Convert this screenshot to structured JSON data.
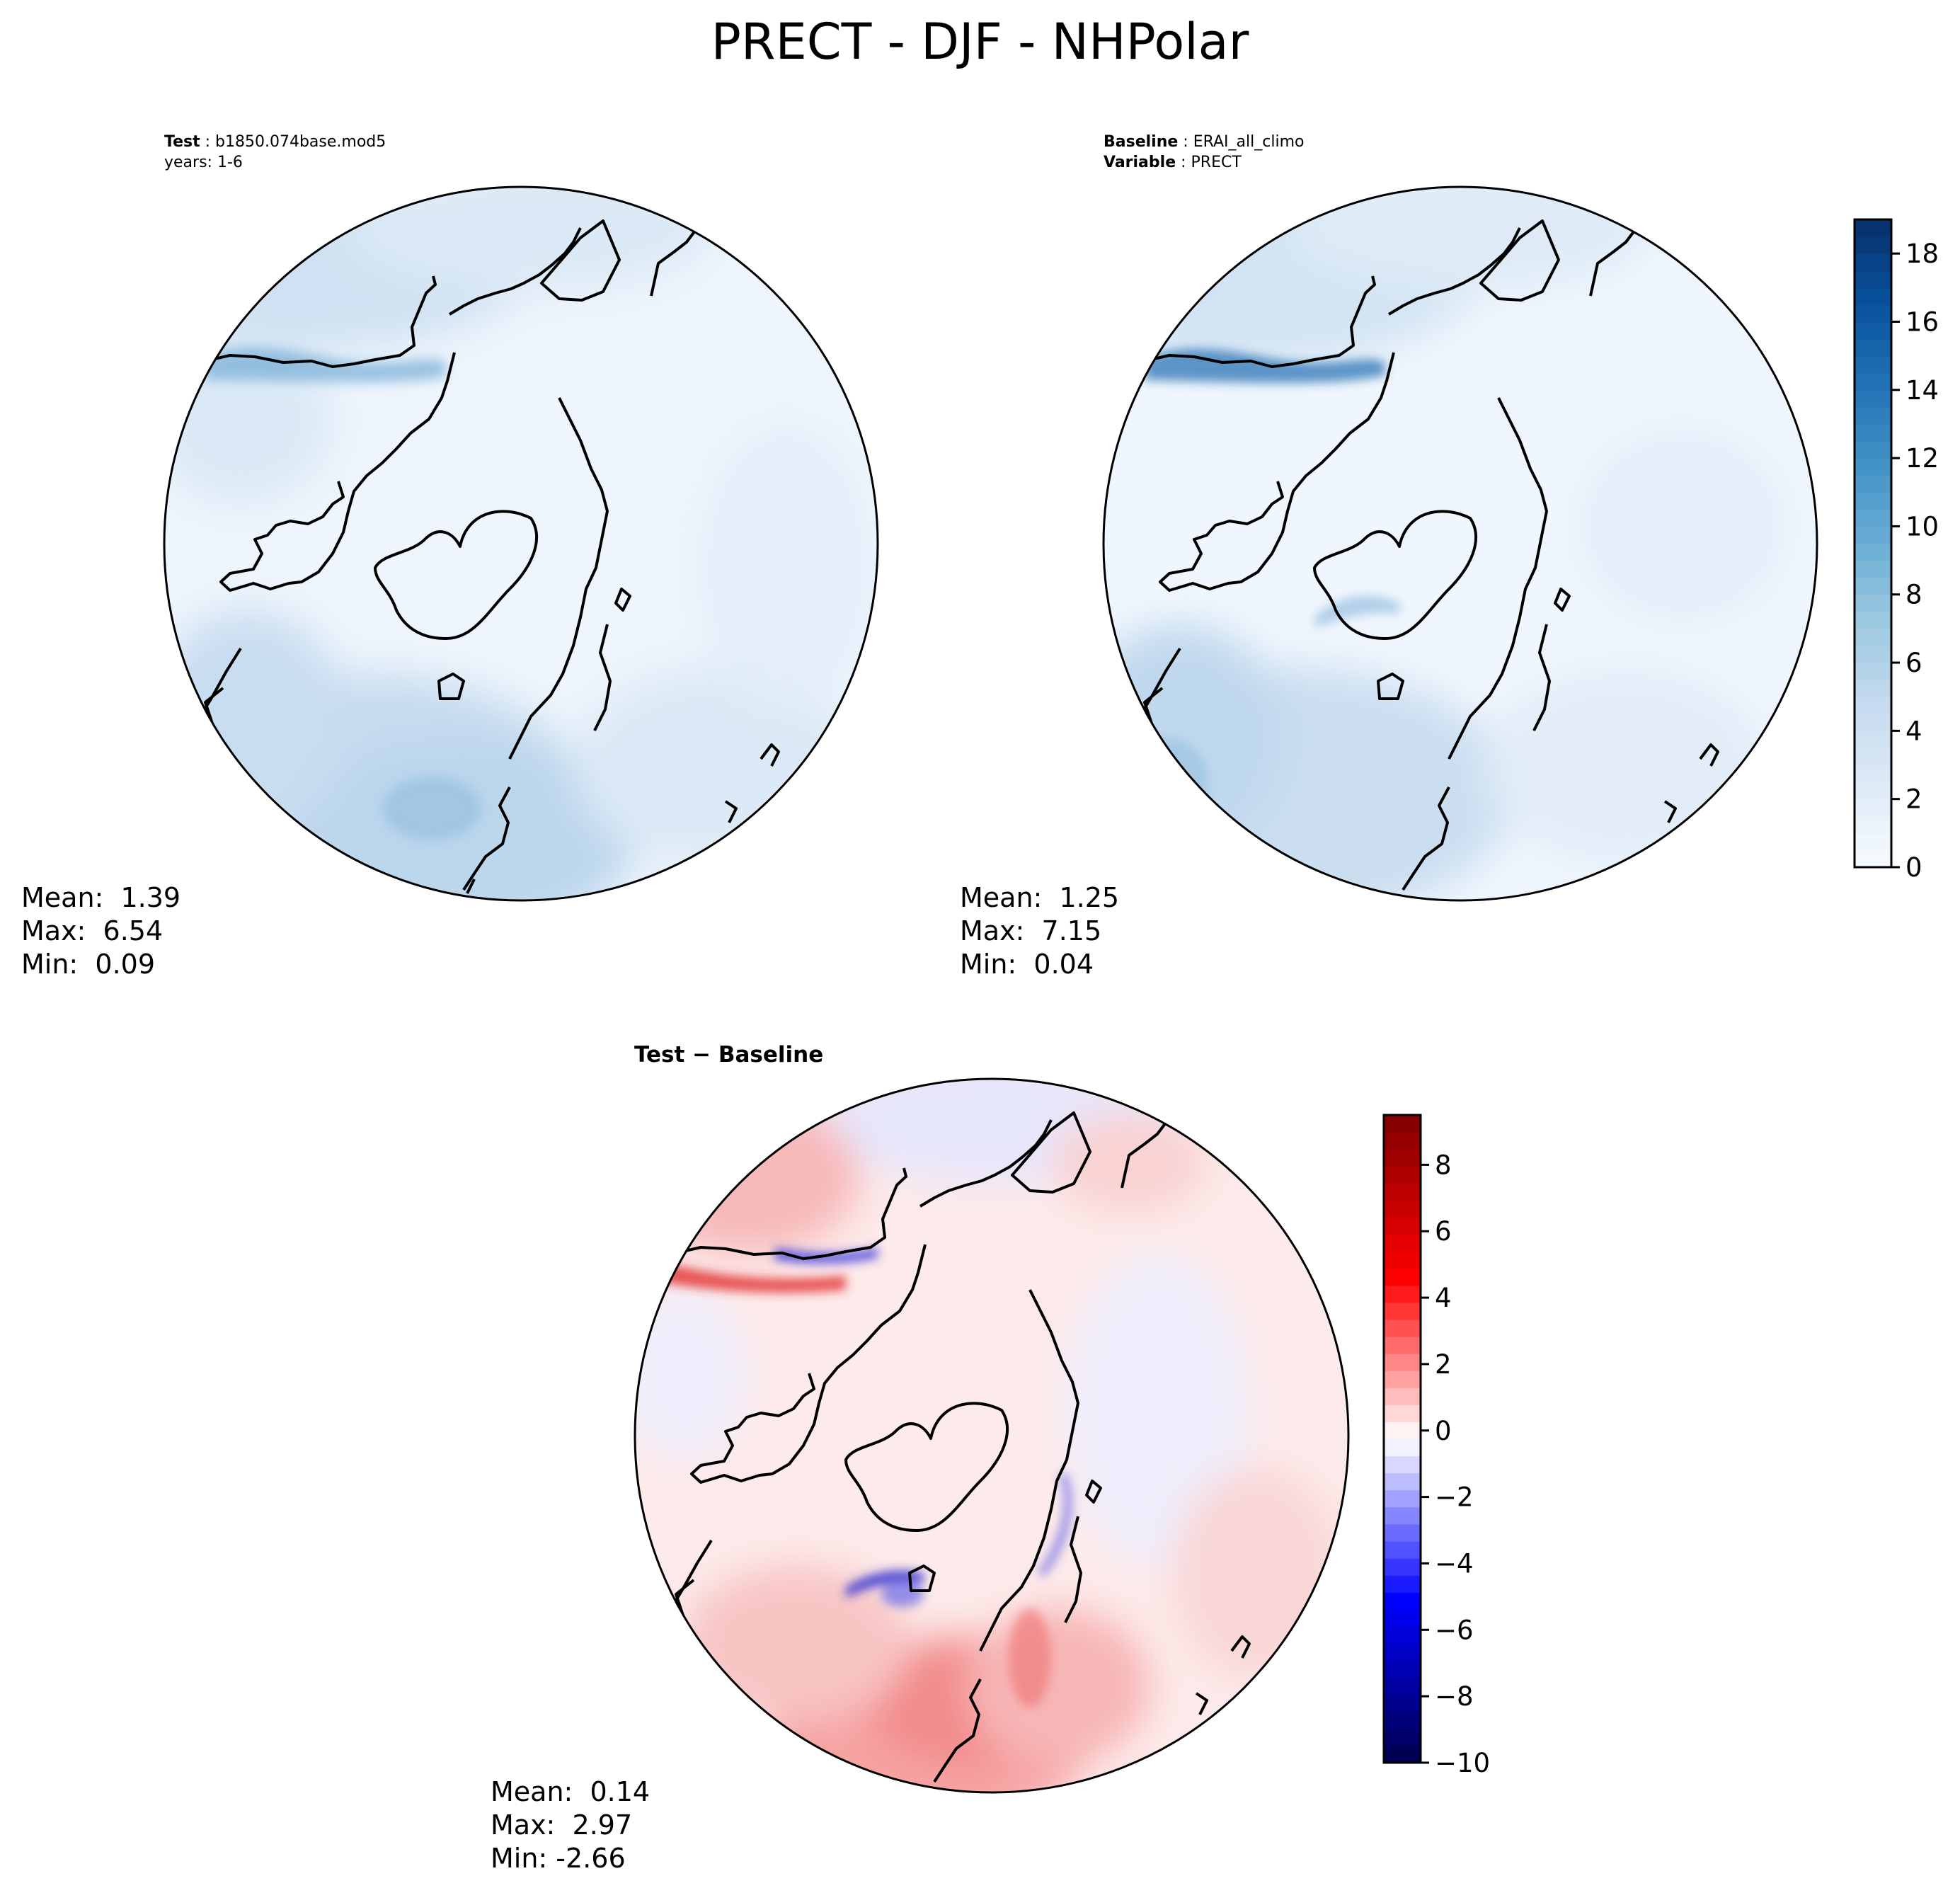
{
  "figure": {
    "title": "PRECT - DJF - NHPolar"
  },
  "panels": {
    "test": {
      "label_key": "Test",
      "label_value": "b1850.074base.mod5",
      "line2": "years: 1-6",
      "stats": {
        "mean": "Mean:  1.39",
        "max": "Max:  6.54",
        "min": "Min:  0.09"
      }
    },
    "baseline": {
      "label_key": "Baseline",
      "label_value": "ERAI_all_climo",
      "line2_key": "Variable",
      "line2_value": "PRECT",
      "stats": {
        "mean": "Mean:  1.25",
        "max": "Max:  7.15",
        "min": "Min:  0.04"
      }
    },
    "diff": {
      "title": "Test − Baseline",
      "stats": {
        "mean": "Mean:  0.14",
        "max": "Max:  2.97",
        "min": "Min: -2.66"
      }
    }
  },
  "chart_data": [
    {
      "type": "heatmap",
      "projection": "north-polar-stereographic",
      "title": "",
      "mean": 1.39,
      "max": 6.54,
      "min": 0.09,
      "colormap": "Blues",
      "vlim": [
        0,
        19
      ],
      "colorbar_ticks": [
        0,
        2,
        4,
        6,
        8,
        10,
        12,
        14,
        16,
        18
      ],
      "colorbar_shared_with_baseline": true
    },
    {
      "type": "heatmap",
      "projection": "north-polar-stereographic",
      "title": "",
      "mean": 1.25,
      "max": 7.15,
      "min": 0.04,
      "colormap": "Blues",
      "vlim": [
        0,
        19
      ],
      "colorbar_ticks": [
        0,
        2,
        4,
        6,
        8,
        10,
        12,
        14,
        16,
        18
      ],
      "colorbar_ticks_text": [
        "0",
        "2",
        "4",
        "6",
        "8",
        "10",
        "12",
        "14",
        "16",
        "18"
      ]
    },
    {
      "type": "heatmap",
      "projection": "north-polar-stereographic",
      "title": "",
      "mean": 0.14,
      "max": 2.97,
      "min": -2.66,
      "colormap": "seismic",
      "vlim": [
        -10,
        9.5
      ],
      "colorbar_ticks": [
        -10,
        -8,
        -6,
        -4,
        -2,
        0,
        2,
        4,
        6,
        8
      ],
      "colorbar_ticks_text": [
        "−10",
        "−8",
        "−6",
        "−4",
        "−2",
        "0",
        "2",
        "4",
        "6",
        "8"
      ]
    }
  ],
  "colors": {
    "blues_low": "#f1f7fd",
    "blues_high": "#08306b",
    "seismic_low": "#00004c",
    "seismic_mid": "#ffffff",
    "seismic_high": "#800000",
    "coastline": "#000000"
  }
}
